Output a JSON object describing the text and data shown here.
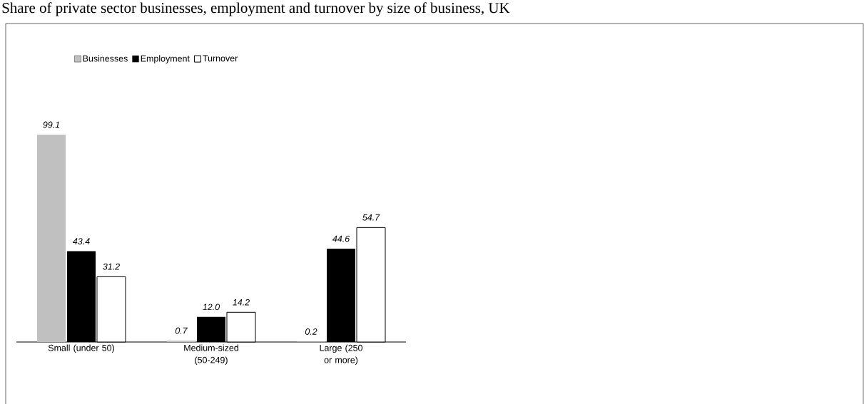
{
  "chart_data": {
    "type": "bar",
    "title": "Share of private sector businesses, employment and turnover by size of business, UK",
    "categories": [
      "Small (under 50)",
      "Medium-sized (50-249)",
      "Large (250 or more)"
    ],
    "series": [
      {
        "name": "Businesses",
        "color": "#c0c0c0",
        "values": [
          99.1,
          0.7,
          0.2
        ],
        "value_labels": [
          "99.1",
          "0.7",
          "0.2"
        ]
      },
      {
        "name": "Employment",
        "color": "#000000",
        "values": [
          43.4,
          12.0,
          44.6
        ],
        "value_labels": [
          "43.4",
          "12.0",
          "44.6"
        ]
      },
      {
        "name": "Turnover",
        "color": "#ffffff",
        "values": [
          31.2,
          14.2,
          54.7
        ],
        "value_labels": [
          "31.2",
          "14.2",
          "54.7"
        ]
      }
    ],
    "legend": "top"
  }
}
